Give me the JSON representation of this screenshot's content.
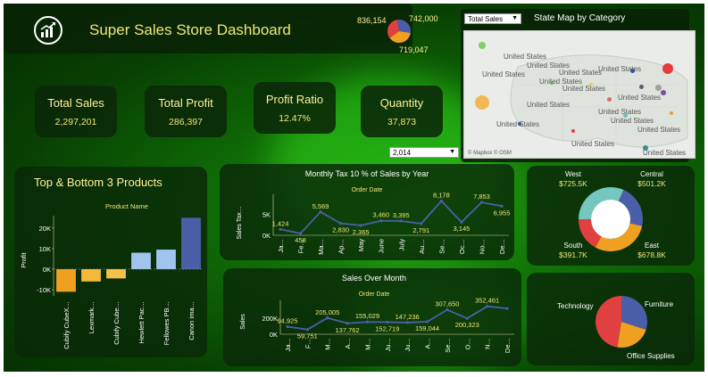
{
  "header": {
    "title": "Super Sales Store Dashboard",
    "logo_icon": "chart-growth-icon"
  },
  "mini_pie": {
    "labels": [
      "836,154",
      "742,000",
      "719,047"
    ],
    "colors": [
      "#4a5fa8",
      "#f0a020",
      "#e04040"
    ]
  },
  "kpis": [
    {
      "label": "Total Sales",
      "value": "2,297,201"
    },
    {
      "label": "Total Profit",
      "value": "286,397"
    },
    {
      "label": "Profit Ratio",
      "value": "12.47%"
    },
    {
      "label": "Quantity",
      "value": "37,873"
    }
  ],
  "year_select": {
    "value": "2,014"
  },
  "measure_select": {
    "value": "Total Sales"
  },
  "state_map": {
    "title": "State Map by Category",
    "label": "United States",
    "attribution": "© Mapbox © OSM"
  },
  "top_bottom": {
    "title": "Top & Bottom 3 Products",
    "header": "Product Name",
    "ylabel": "Profit",
    "products": [
      "Cubify CubeX…",
      "Lexmark…",
      "Cubify Cube…",
      "Hewlett Pac…",
      "Fellowes PB…",
      "Canon ima…"
    ],
    "values": [
      -11000,
      -6000,
      -4500,
      8000,
      9500,
      25000
    ],
    "colors": [
      "#f0a020",
      "#f5b93a",
      "#f5c04a",
      "#a0c4ee",
      "#a0c4ee",
      "#4a5fa8"
    ],
    "ticks": [
      "20K",
      "10K",
      "0K",
      "-10K"
    ]
  },
  "tax_chart": {
    "title": "Monthly Tax 10 % of Sales by Year",
    "header": "Order Date",
    "ylabel": "Sales Tax…",
    "months": [
      "Ja…",
      "Fe…",
      "Ma…",
      "Ap…",
      "May",
      "June",
      "July",
      "Au…",
      "Se…",
      "Oc…",
      "No…",
      "De…"
    ],
    "values": [
      1424,
      458,
      5569,
      2830,
      2365,
      3460,
      3395,
      2791,
      8178,
      3145,
      7853,
      6955
    ],
    "labels": [
      "1,424",
      "458",
      "5,569",
      "2,830",
      "2,365",
      "3,460",
      "3,395",
      "2,791",
      "8,178",
      "3,145",
      "7,853",
      "6,955"
    ],
    "ticks": [
      "5K",
      "0K"
    ]
  },
  "sales_chart": {
    "title": "Sales Over Month",
    "header": "Order Date",
    "ylabel": "Sales",
    "months": [
      "Ja…",
      "F…",
      "M…",
      "A…",
      "M…",
      "Ju…",
      "Ju…",
      "A…",
      "Se…",
      "O…",
      "N…",
      "De…"
    ],
    "values": [
      94925,
      59751,
      205005,
      137762,
      155029,
      152719,
      147236,
      159044,
      307650,
      200323,
      352461,
      325000
    ],
    "labels": [
      "94,925",
      "59,751",
      "205,005",
      "137,762",
      "155,029",
      "152,719",
      "147,236",
      "159,044",
      "307,650",
      "200,323",
      "352,461",
      ""
    ],
    "ticks": [
      "200K",
      "0K"
    ]
  },
  "region_donut": {
    "regions": [
      {
        "name": "West",
        "value": "$725.5K",
        "color": "#76c6c0"
      },
      {
        "name": "Central",
        "value": "$501.2K",
        "color": "#4a5fa8"
      },
      {
        "name": "East",
        "value": "$678.8K",
        "color": "#f0a020"
      },
      {
        "name": "South",
        "value": "$391.7K",
        "color": "#e04040"
      }
    ],
    "shares": [
      725.5,
      501.2,
      678.8,
      391.7
    ]
  },
  "category_pie": {
    "categories": [
      {
        "name": "Technology",
        "color": "#e04040"
      },
      {
        "name": "Furniture",
        "color": "#4a5fa8"
      },
      {
        "name": "Office Supplies",
        "color": "#f0a020"
      }
    ],
    "shares": [
      36,
      32,
      32
    ]
  }
}
